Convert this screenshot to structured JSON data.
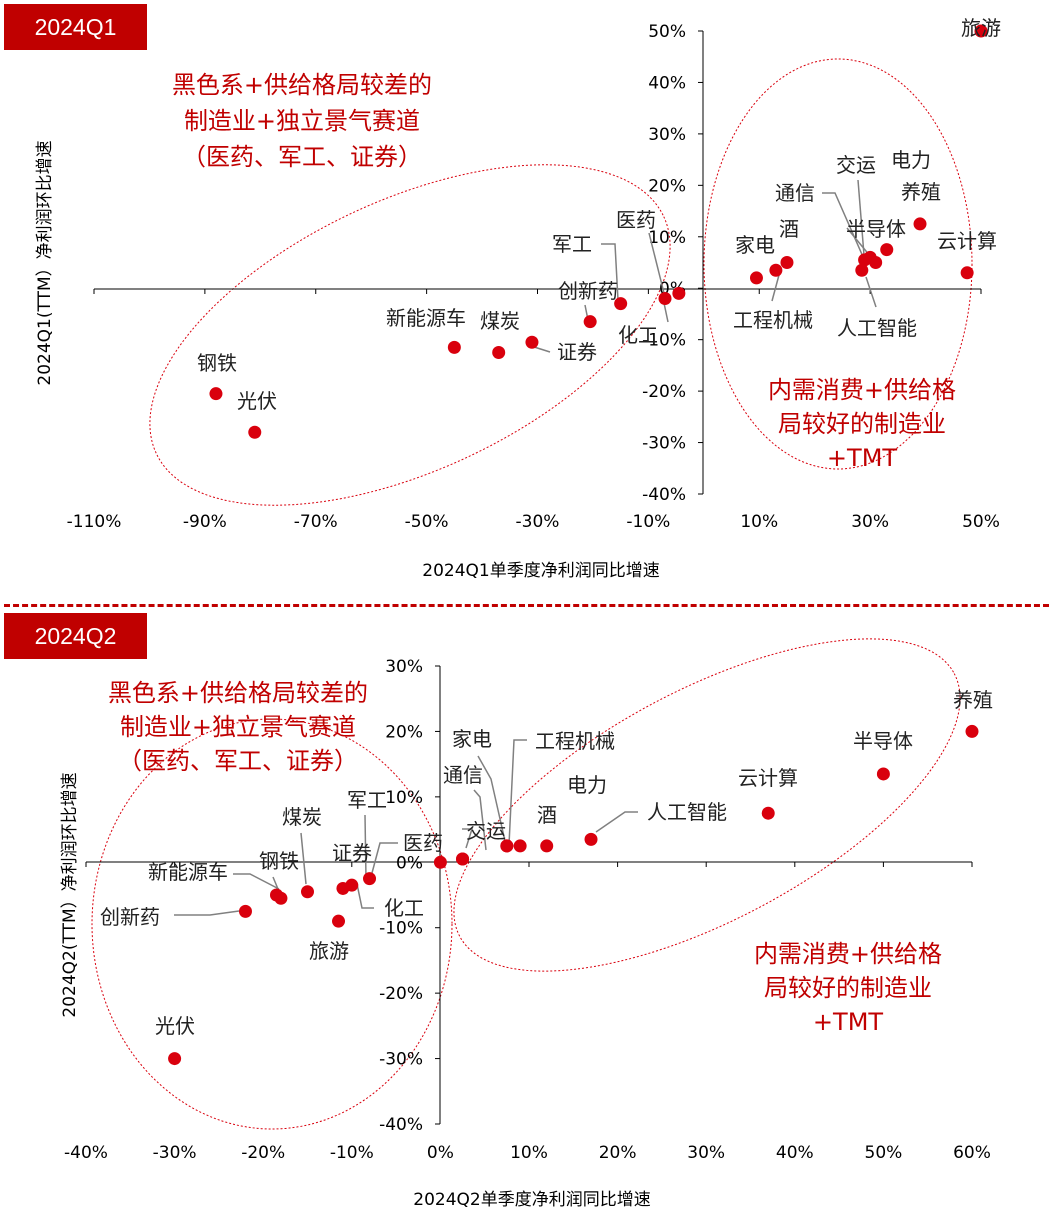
{
  "panels": [
    {
      "tag": "2024Q1"
    },
    {
      "tag": "2024Q2"
    }
  ],
  "colors": {
    "accent": "#c00000",
    "point": "#d9000d",
    "ellipse": "#d9000d",
    "leader": "#808080",
    "axis": "#000000"
  },
  "chart_data": [
    {
      "type": "scatter",
      "xlabel": "2024Q1单季度净利润同比增速",
      "ylabel": "2024Q1(TTM）净利润环比增速",
      "xlim": [
        -110,
        50
      ],
      "ylim": [
        -40,
        50
      ],
      "xticks": [
        -110,
        -90,
        -70,
        -50,
        -30,
        -10,
        10,
        30,
        50
      ],
      "yticks": [
        -40,
        -30,
        -20,
        -10,
        0,
        10,
        20,
        30,
        40,
        50
      ],
      "xtick_labels": [
        "-110%",
        "-90%",
        "-70%",
        "-50%",
        "-30%",
        "-10%",
        "10%",
        "30%",
        "50%"
      ],
      "ytick_labels": [
        "-40%",
        "-30%",
        "-20%",
        "-10%",
        "0%",
        "10%",
        "20%",
        "30%",
        "40%",
        "50%"
      ],
      "grid": false,
      "points": [
        {
          "label": "旅游",
          "x": 50.0,
          "y": 50.0
        },
        {
          "label": "电力",
          "x": 33.0,
          "y": 7.5
        },
        {
          "label": "养殖",
          "x": 39.0,
          "y": 12.5
        },
        {
          "label": "云计算",
          "x": 47.5,
          "y": 3.0
        },
        {
          "label": "交运",
          "x": 30.0,
          "y": 6.0
        },
        {
          "label": "半导体",
          "x": 31.0,
          "y": 5.0
        },
        {
          "label": "通信",
          "x": 29.0,
          "y": 5.5
        },
        {
          "label": "人工智能",
          "x": 28.5,
          "y": 3.5
        },
        {
          "label": "酒",
          "x": 15.0,
          "y": 5.0
        },
        {
          "label": "工程机械",
          "x": 13.0,
          "y": 3.5
        },
        {
          "label": "家电",
          "x": 9.5,
          "y": 2.0
        },
        {
          "label": "医药",
          "x": -7.0,
          "y": -2.0
        },
        {
          "label": "化工",
          "x": -4.5,
          "y": -1.0
        },
        {
          "label": "军工",
          "x": -15.0,
          "y": -3.0
        },
        {
          "label": "创新药",
          "x": -20.5,
          "y": -6.5
        },
        {
          "label": "证券",
          "x": -31.0,
          "y": -10.5
        },
        {
          "label": "煤炭",
          "x": -37.0,
          "y": -12.5
        },
        {
          "label": "新能源车",
          "x": -45.0,
          "y": -11.5
        },
        {
          "label": "钢铁",
          "x": -88.0,
          "y": -20.5
        },
        {
          "label": "光伏",
          "x": -81.0,
          "y": -28.0
        }
      ],
      "annotations": [
        {
          "lines": [
            "黑色系+供给格局较差的",
            "制造业+独立景气赛道",
            "（医药、军工、证券）"
          ]
        },
        {
          "lines": [
            "内需消费+供给格",
            "局较好的制造业",
            "+TMT"
          ]
        }
      ]
    },
    {
      "type": "scatter",
      "xlabel": "2024Q2单季度净利润同比增速",
      "ylabel": "2024Q2(TTM）净利润环比增速",
      "xlim": [
        -40,
        60
      ],
      "ylim": [
        -40,
        30
      ],
      "xticks": [
        -40,
        -30,
        -20,
        -10,
        0,
        10,
        20,
        30,
        40,
        50,
        60
      ],
      "yticks": [
        -40,
        -30,
        -20,
        -10,
        0,
        10,
        20,
        30
      ],
      "xtick_labels": [
        "-40%",
        "-30%",
        "-20%",
        "-10%",
        "0%",
        "10%",
        "20%",
        "30%",
        "40%",
        "50%",
        "60%"
      ],
      "ytick_labels": [
        "-40%",
        "-30%",
        "-20%",
        "-10%",
        "0%",
        "10%",
        "20%",
        "30%"
      ],
      "grid": false,
      "points": [
        {
          "label": "养殖",
          "x": 60.0,
          "y": 20.0
        },
        {
          "label": "半导体",
          "x": 50.0,
          "y": 13.5
        },
        {
          "label": "云计算",
          "x": 37.0,
          "y": 7.5
        },
        {
          "label": "人工智能",
          "x": 17.0,
          "y": 3.5
        },
        {
          "label": "电力",
          "x": 12.0,
          "y": 2.5
        },
        {
          "label": "酒",
          "x": 9.0,
          "y": 2.5
        },
        {
          "label": "工程机械",
          "x": 7.5,
          "y": 2.5
        },
        {
          "label": "家电",
          "x": 7.5,
          "y": 2.5
        },
        {
          "label": "交运",
          "x": 2.5,
          "y": 0.5
        },
        {
          "label": "通信",
          "x": 2.5,
          "y": 0.5
        },
        {
          "label": "医药",
          "x": 0.0,
          "y": 0.0
        },
        {
          "label": "军工",
          "x": -8.0,
          "y": -2.5
        },
        {
          "label": "证券",
          "x": -10.0,
          "y": -3.5
        },
        {
          "label": "化工",
          "x": -11.0,
          "y": -4.0
        },
        {
          "label": "煤炭",
          "x": -15.0,
          "y": -4.5
        },
        {
          "label": "钢铁",
          "x": -18.0,
          "y": -5.5
        },
        {
          "label": "新能源车",
          "x": -18.5,
          "y": -5.0
        },
        {
          "label": "创新药",
          "x": -22.0,
          "y": -7.5
        },
        {
          "label": "旅游",
          "x": -11.5,
          "y": -9.0
        },
        {
          "label": "光伏",
          "x": -30.0,
          "y": -30.0
        }
      ],
      "annotations": [
        {
          "lines": [
            "黑色系+供给格局较差的",
            "制造业+独立景气赛道",
            "（医药、军工、证券）"
          ]
        },
        {
          "lines": [
            "内需消费+供给格",
            "局较好的制造业",
            "+TMT"
          ]
        }
      ]
    }
  ]
}
